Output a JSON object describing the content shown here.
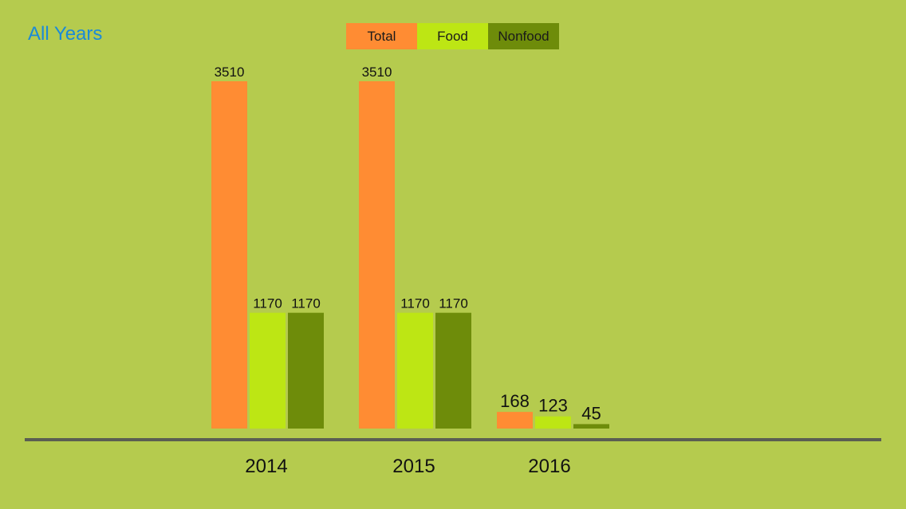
{
  "header": {
    "title": "All Years"
  },
  "chart_data": {
    "type": "bar",
    "categories": [
      "2014",
      "2015",
      "2016"
    ],
    "series": [
      {
        "name": "Total",
        "color": "#ff8c33",
        "values": [
          3510,
          3510,
          168
        ]
      },
      {
        "name": "Food",
        "color": "#bde614",
        "values": [
          1170,
          1170,
          123
        ]
      },
      {
        "name": "Nonfood",
        "color": "#6e8c0a",
        "values": [
          1170,
          1170,
          45
        ]
      }
    ],
    "ylim": [
      0,
      3510
    ],
    "grid": false,
    "legend": "top-center",
    "data_labels": true,
    "baseline_color": "#5a5e52"
  }
}
